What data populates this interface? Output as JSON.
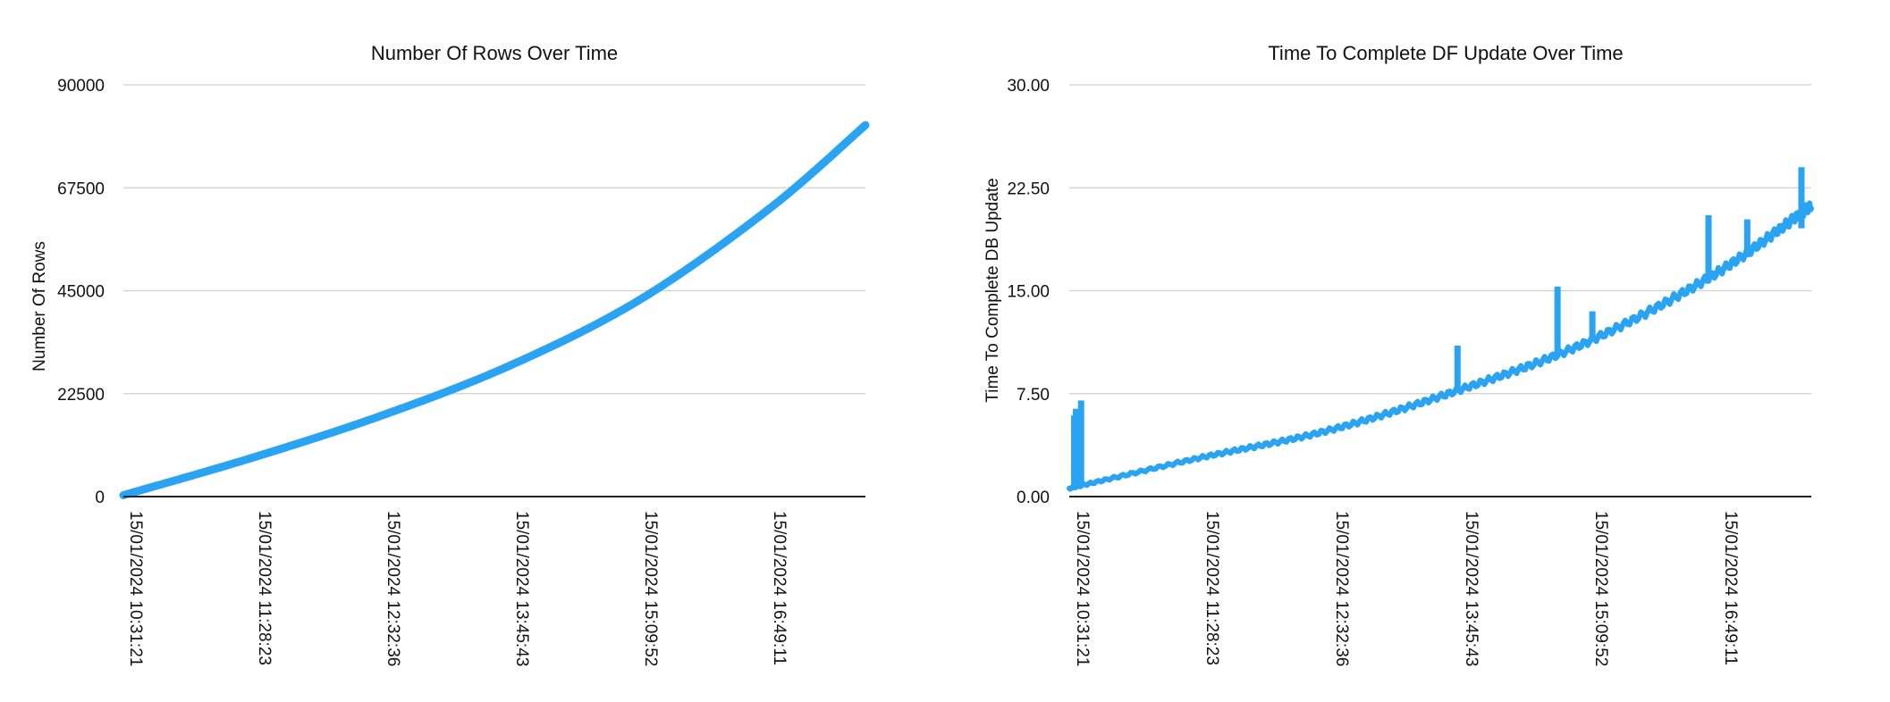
{
  "chart_data": [
    {
      "type": "line",
      "title": "Number Of Rows Over Time",
      "xlabel": "",
      "ylabel": "Number Of Rows",
      "ylim": [
        0,
        90000
      ],
      "yticks": [
        "0",
        "22500",
        "45000",
        "67500",
        "90000"
      ],
      "yticks_values": [
        0,
        22500,
        45000,
        67500,
        90000
      ],
      "xticks": [
        "15/01/2024 10:31:21",
        "15/01/2024 11:28:23",
        "15/01/2024 12:32:36",
        "15/01/2024 13:45:43",
        "15/01/2024 15:09:52",
        "15/01/2024 16:49:11"
      ],
      "grid": true,
      "line_color": "#29A3F2",
      "x": [
        "15/01/2024 10:31:21",
        "15/01/2024 11:28:23",
        "15/01/2024 12:32:36",
        "15/01/2024 13:45:43",
        "15/01/2024 15:09:52",
        "15/01/2024 16:49:11",
        "15/01/2024 17:45:00"
      ],
      "values": [
        300,
        8500,
        17700,
        28700,
        43000,
        62800,
        81200
      ]
    },
    {
      "type": "line",
      "title": "Time To Complete DF Update Over Time",
      "xlabel": "",
      "ylabel": "Time To Complete DB Update",
      "ylim": [
        0,
        30
      ],
      "yticks": [
        "0.00",
        "7.50",
        "15.00",
        "22.50",
        "30.00"
      ],
      "yticks_values": [
        0,
        7.5,
        15,
        22.5,
        30
      ],
      "xticks": [
        "15/01/2024 10:31:21",
        "15/01/2024 11:28:23",
        "15/01/2024 12:32:36",
        "15/01/2024 13:45:43",
        "15/01/2024 15:09:52",
        "15/01/2024 16:49:11"
      ],
      "grid": true,
      "line_color": "#29A3F2",
      "x": [
        "15/01/2024 10:31:21",
        "15/01/2024 11:28:23",
        "15/01/2024 12:32:36",
        "15/01/2024 13:45:43",
        "15/01/2024 15:09:52",
        "15/01/2024 16:49:11",
        "15/01/2024 17:45:00"
      ],
      "values": [
        0.6,
        2.8,
        4.8,
        7.7,
        11.2,
        16.2,
        21.2
      ],
      "spikes": [
        {
          "x": "15/01/2024 10:31:21",
          "index_offset": 0.035,
          "value": 5.9
        },
        {
          "x": "15/01/2024 10:31:21",
          "index_offset": 0.048,
          "value": 6.4
        },
        {
          "x": "15/01/2024 10:31:21",
          "index_offset": 0.088,
          "value": 7.0
        },
        {
          "x": "15/01/2024 13:45:43",
          "index_offset": 3.005,
          "value": 11.0
        },
        {
          "x": "15/01/2024 15:09:52",
          "index_offset": 3.78,
          "value": 15.3
        },
        {
          "x": "15/01/2024 15:09:52",
          "index_offset": 4.05,
          "value": 13.5
        },
        {
          "x": "15/01/2024 16:49:11",
          "index_offset": 4.95,
          "value": 20.5
        },
        {
          "x": "15/01/2024 16:49:11",
          "index_offset": 5.25,
          "value": 20.2
        },
        {
          "x": "15/01/2024 16:49:11",
          "index_offset": 5.67,
          "value": 24.0
        }
      ]
    }
  ]
}
